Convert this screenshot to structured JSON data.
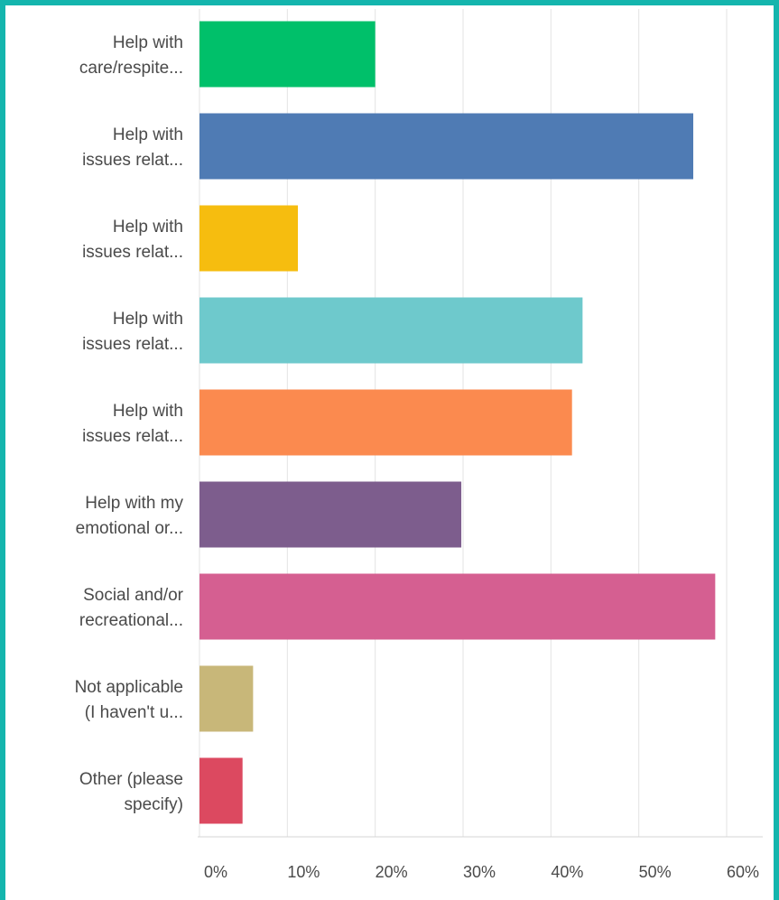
{
  "chart_data": {
    "type": "bar",
    "orientation": "horizontal",
    "categories": [
      [
        "Help with",
        "care/respite..."
      ],
      [
        "Help with",
        "issues relat..."
      ],
      [
        "Help with",
        "issues relat..."
      ],
      [
        "Help with",
        "issues relat..."
      ],
      [
        "Help with",
        "issues relat..."
      ],
      [
        "Help with my",
        "emotional or..."
      ],
      [
        "Social and/or",
        "recreational..."
      ],
      [
        "Not applicable",
        "(I haven't u..."
      ],
      [
        "Other (please",
        "specify)"
      ]
    ],
    "values": [
      0.2,
      0.562,
      0.112,
      0.436,
      0.424,
      0.298,
      0.587,
      0.061,
      0.049
    ],
    "colors": [
      "#00c06a",
      "#4f7bb4",
      "#f6bd0f",
      "#6ec9cc",
      "#fb8a4f",
      "#7d5d8d",
      "#d55f91",
      "#c8b779",
      "#dc4960"
    ],
    "xlim": [
      0,
      0.6
    ],
    "xticks": [
      "0%",
      "10%",
      "20%",
      "30%",
      "40%",
      "50%",
      "60%"
    ],
    "grid": true,
    "title": "",
    "xlabel": "",
    "ylabel": ""
  },
  "frame_color": "#14b5ad"
}
